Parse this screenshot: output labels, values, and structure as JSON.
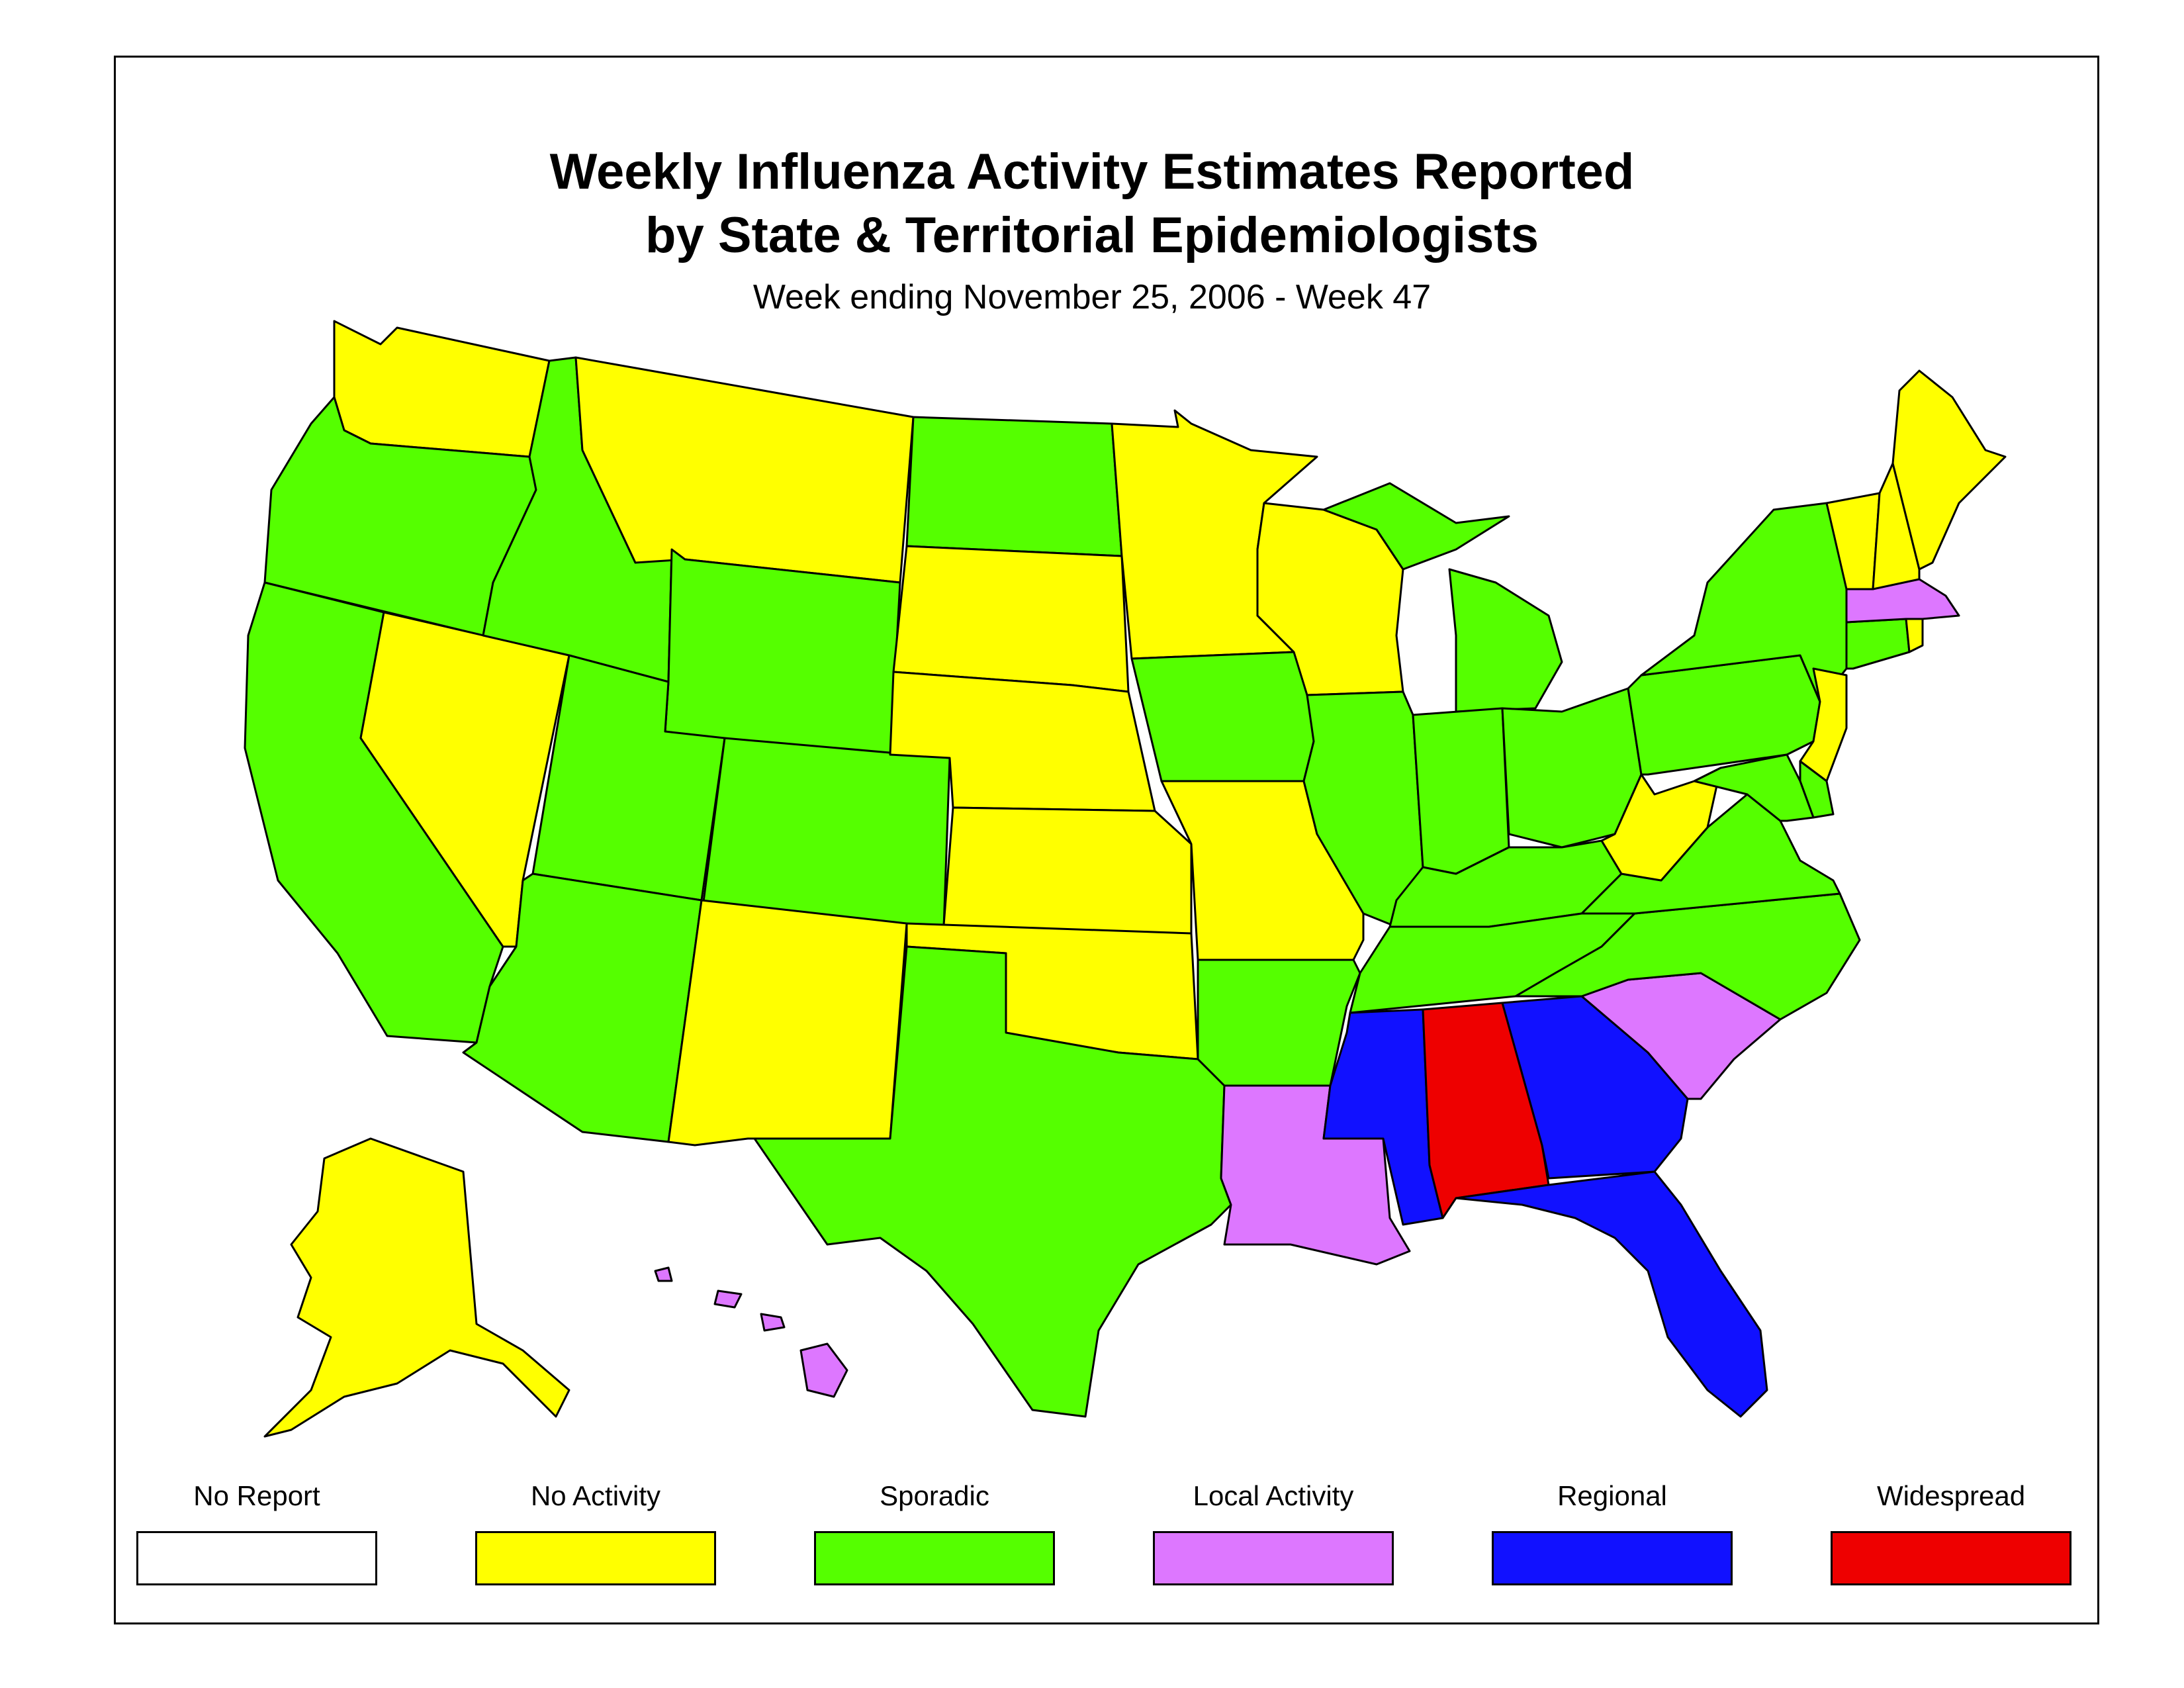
{
  "title_line1": "Weekly Influenza Activity Estimates Reported",
  "title_line2": "by State & Territorial Epidemiologists",
  "subtitle": "Week ending November 25, 2006 - Week 47",
  "legend": [
    {
      "key": "none",
      "label": "No Report",
      "color": "#ffffff"
    },
    {
      "key": "noact",
      "label": "No Activity",
      "color": "#ffff00"
    },
    {
      "key": "spor",
      "label": "Sporadic",
      "color": "#55ff00"
    },
    {
      "key": "local",
      "label": "Local Activity",
      "color": "#dd77ff"
    },
    {
      "key": "reg",
      "label": "Regional",
      "color": "#1111ff"
    },
    {
      "key": "wide",
      "label": "Widespread",
      "color": "#ee0000"
    }
  ],
  "activity_by_state": {
    "WA": "No Activity",
    "OR": "Sporadic",
    "CA": "Sporadic",
    "NV": "No Activity",
    "ID": "Sporadic",
    "MT": "No Activity",
    "WY": "Sporadic",
    "UT": "Sporadic",
    "AZ": "Sporadic",
    "CO": "Sporadic",
    "NM": "No Activity",
    "ND": "Sporadic",
    "SD": "No Activity",
    "NE": "No Activity",
    "KS": "No Activity",
    "OK": "No Activity",
    "TX": "Sporadic",
    "MN": "No Activity",
    "IA": "Sporadic",
    "MO": "No Activity",
    "AR": "Sporadic",
    "LA": "Local Activity",
    "WI": "No Activity",
    "IL": "Sporadic",
    "MI": "Sporadic",
    "IN": "Sporadic",
    "OH": "Sporadic",
    "KY": "Sporadic",
    "TN": "Sporadic",
    "MS": "Regional",
    "AL": "Widespread",
    "GA": "Regional",
    "FL": "Regional",
    "SC": "Local Activity",
    "NC": "Sporadic",
    "VA": "Sporadic",
    "WV": "No Activity",
    "PA": "Sporadic",
    "NY": "Sporadic",
    "NJ": "No Activity",
    "DE": "Sporadic",
    "MD": "Sporadic",
    "CT": "Sporadic",
    "RI": "No Activity",
    "MA": "Local Activity",
    "VT": "No Activity",
    "NH": "No Activity",
    "ME": "No Activity",
    "AK": "No Activity",
    "HI": "Local Activity"
  }
}
